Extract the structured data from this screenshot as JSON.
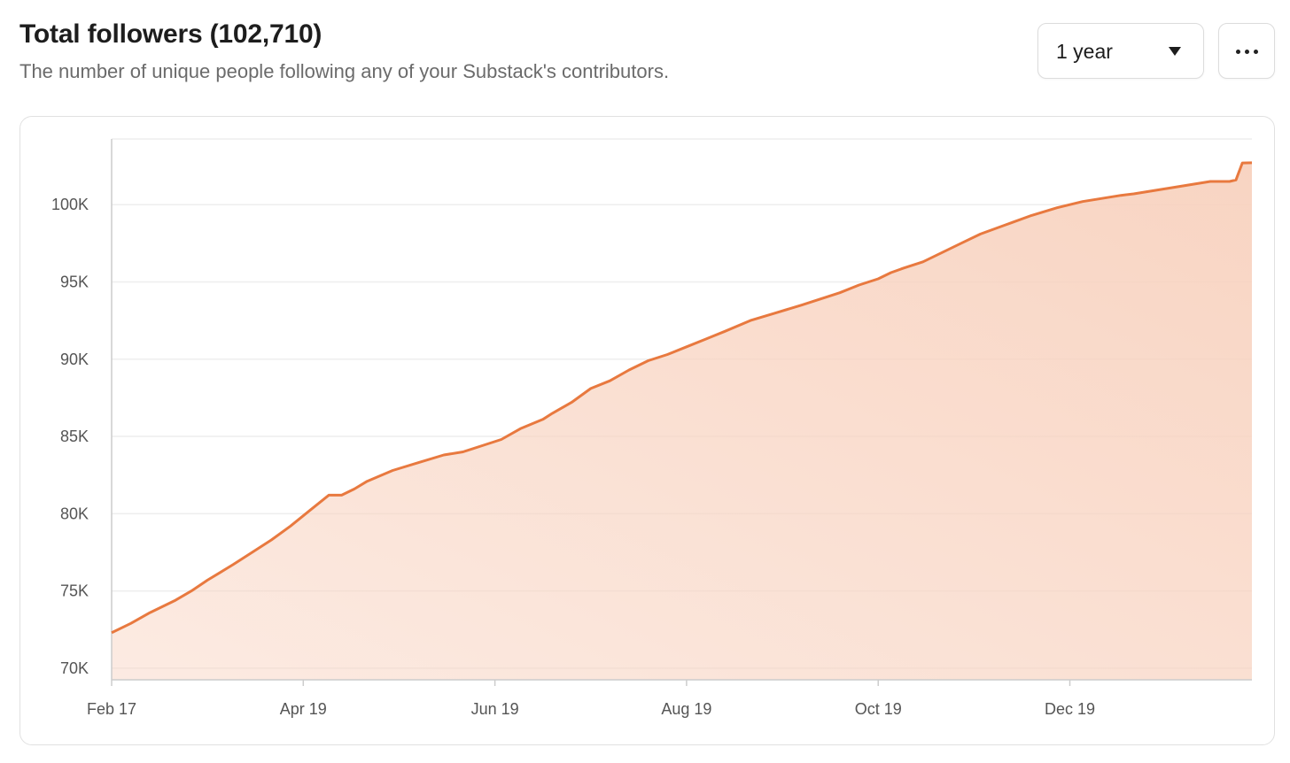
{
  "header": {
    "title": "Total followers (102,710)",
    "subtitle": "The number of unique people following any of your Substack's contributors."
  },
  "controls": {
    "range_label": "1 year",
    "more_icon": "ellipsis-icon"
  },
  "colors": {
    "line": "#e8793f",
    "fill": "#f8d2bf",
    "grid": "#eeeeee",
    "axis": "#cccccc"
  },
  "chart_data": {
    "type": "area",
    "title": "Total followers (102,710)",
    "xlabel": "",
    "ylabel": "",
    "ylim": [
      69250,
      104250
    ],
    "xlim": [
      0,
      357
    ],
    "grid": true,
    "y_ticks": [
      {
        "value": 70000,
        "label": "70K"
      },
      {
        "value": 75000,
        "label": "75K"
      },
      {
        "value": 80000,
        "label": "80K"
      },
      {
        "value": 85000,
        "label": "85K"
      },
      {
        "value": 90000,
        "label": "90K"
      },
      {
        "value": 95000,
        "label": "95K"
      },
      {
        "value": 100000,
        "label": "100K"
      }
    ],
    "x_ticks": [
      {
        "value": 0,
        "label": "Feb 17"
      },
      {
        "value": 60,
        "label": "Apr 19"
      },
      {
        "value": 120,
        "label": "Jun 19"
      },
      {
        "value": 180,
        "label": "Aug 19"
      },
      {
        "value": 240,
        "label": "Oct 19"
      },
      {
        "value": 300,
        "label": "Dec 19"
      }
    ],
    "series": [
      {
        "name": "Total followers",
        "x": [
          0,
          6,
          12,
          20,
          25,
          30,
          34,
          38,
          44,
          50,
          56,
          62,
          68,
          72,
          76,
          80,
          88,
          96,
          104,
          110,
          116,
          122,
          128,
          135,
          138,
          144,
          150,
          156,
          162,
          168,
          174,
          180,
          186,
          192,
          200,
          208,
          216,
          222,
          228,
          234,
          240,
          244,
          248,
          254,
          260,
          266,
          272,
          280,
          288,
          296,
          304,
          310,
          316,
          320,
          326,
          332,
          338,
          344,
          350,
          352,
          354,
          357
        ],
        "y": [
          72300,
          72900,
          73600,
          74400,
          75000,
          75700,
          76200,
          76700,
          77500,
          78300,
          79200,
          80200,
          81200,
          81200,
          81600,
          82100,
          82800,
          83300,
          83800,
          84000,
          84400,
          84800,
          85500,
          86100,
          86500,
          87200,
          88100,
          88600,
          89300,
          89900,
          90300,
          90800,
          91300,
          91800,
          92500,
          93000,
          93500,
          93900,
          94300,
          94800,
          95200,
          95600,
          95900,
          96300,
          96900,
          97500,
          98100,
          98700,
          99300,
          99800,
          100200,
          100400,
          100600,
          100700,
          100900,
          101100,
          101300,
          101500,
          101500,
          101600,
          102700,
          102710
        ]
      }
    ]
  }
}
